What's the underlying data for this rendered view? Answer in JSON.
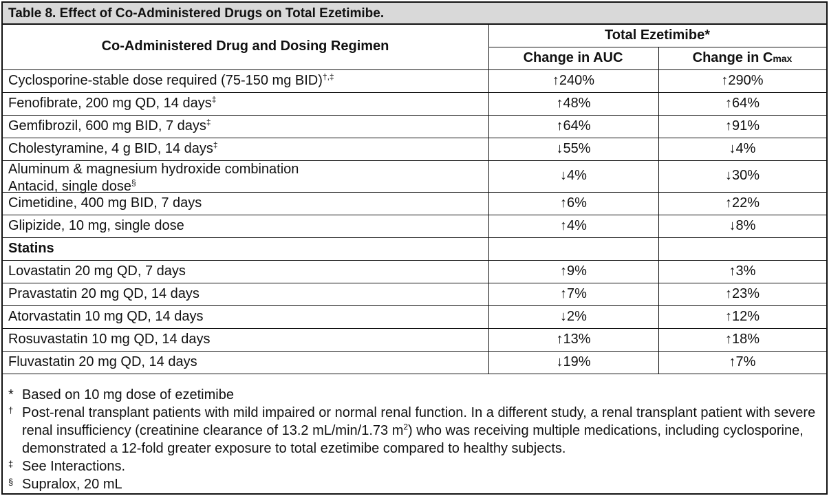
{
  "title": "Table 8. Effect of Co-Administered Drugs on Total Ezetimibe.",
  "header": {
    "col1": "Co-Administered Drug and Dosing Regimen",
    "group": "Total Ezetimibe*",
    "auc": "Change in AUC",
    "cmax_prefix": "Change in C",
    "cmax_sub": "max"
  },
  "rows": [
    {
      "drug": "Cyclosporine-stable dose required (75-150 mg BID)",
      "sup": "†,‡",
      "auc_dir": "↑",
      "auc": "240%",
      "cmax_dir": "↑",
      "cmax": "290%"
    },
    {
      "drug": "Fenofibrate, 200 mg QD, 14 days",
      "sup": "‡",
      "auc_dir": "↑",
      "auc": "48%",
      "cmax_dir": "↑",
      "cmax": "64%"
    },
    {
      "drug": "Gemfibrozil, 600 mg BID, 7 days",
      "sup": "‡",
      "auc_dir": "↑",
      "auc": "64%",
      "cmax_dir": "↑",
      "cmax": "91%"
    },
    {
      "drug": "Cholestyramine, 4 g BID, 14 days",
      "sup": "‡",
      "auc_dir": "↓",
      "auc": "55%",
      "cmax_dir": "↓",
      "cmax": "4%"
    },
    {
      "drug": "Aluminum & magnesium hydroxide combination",
      "drug2": "Antacid, single dose",
      "sup": "§",
      "auc_dir": "↓",
      "auc": "4%",
      "cmax_dir": "↓",
      "cmax": "30%"
    },
    {
      "drug": "Cimetidine, 400 mg BID, 7 days",
      "auc_dir": "↑",
      "auc": "6%",
      "cmax_dir": "↑",
      "cmax": "22%"
    },
    {
      "drug": "Glipizide, 10 mg, single dose",
      "auc_dir": "↑",
      "auc": "4%",
      "cmax_dir": "↓",
      "cmax": "8%"
    },
    {
      "section": "Statins"
    },
    {
      "drug": "Lovastatin 20 mg QD, 7 days",
      "auc_dir": "↑",
      "auc": "9%",
      "cmax_dir": "↑",
      "cmax": "3%"
    },
    {
      "drug": "Pravastatin 20 mg QD, 14 days",
      "auc_dir": "↑",
      "auc": "7%",
      "cmax_dir": "↑",
      "cmax": "23%"
    },
    {
      "drug": "Atorvastatin 10 mg QD, 14 days",
      "auc_dir": "↓",
      "auc": "2%",
      "cmax_dir": "↑",
      "cmax": "12%"
    },
    {
      "drug": "Rosuvastatin 10 mg QD, 14 days",
      "auc_dir": "↑",
      "auc": "13%",
      "cmax_dir": "↑",
      "cmax": "18%"
    },
    {
      "drug": "Fluvastatin 20 mg QD, 14 days",
      "auc_dir": "↓",
      "auc": "19%",
      "cmax_dir": "↑",
      "cmax": "7%"
    }
  ],
  "footnotes": [
    {
      "mark": "*",
      "text": "Based on 10 mg dose of ezetimibe"
    },
    {
      "mark": "†",
      "text_a": "Post-renal transplant patients with mild impaired or normal renal function. In a different study, a renal transplant patient with severe renal insufficiency (creatinine clearance of 13.2 mL/min/1.73 m",
      "text_sup": "2",
      "text_b": ") who was receiving multiple medications, including cyclosporine, demonstrated a 12-fold greater exposure to total ezetimibe compared to healthy subjects."
    },
    {
      "mark": "‡",
      "text": "See Interactions."
    },
    {
      "mark": "§",
      "text": "Supralox, 20 mL"
    }
  ]
}
